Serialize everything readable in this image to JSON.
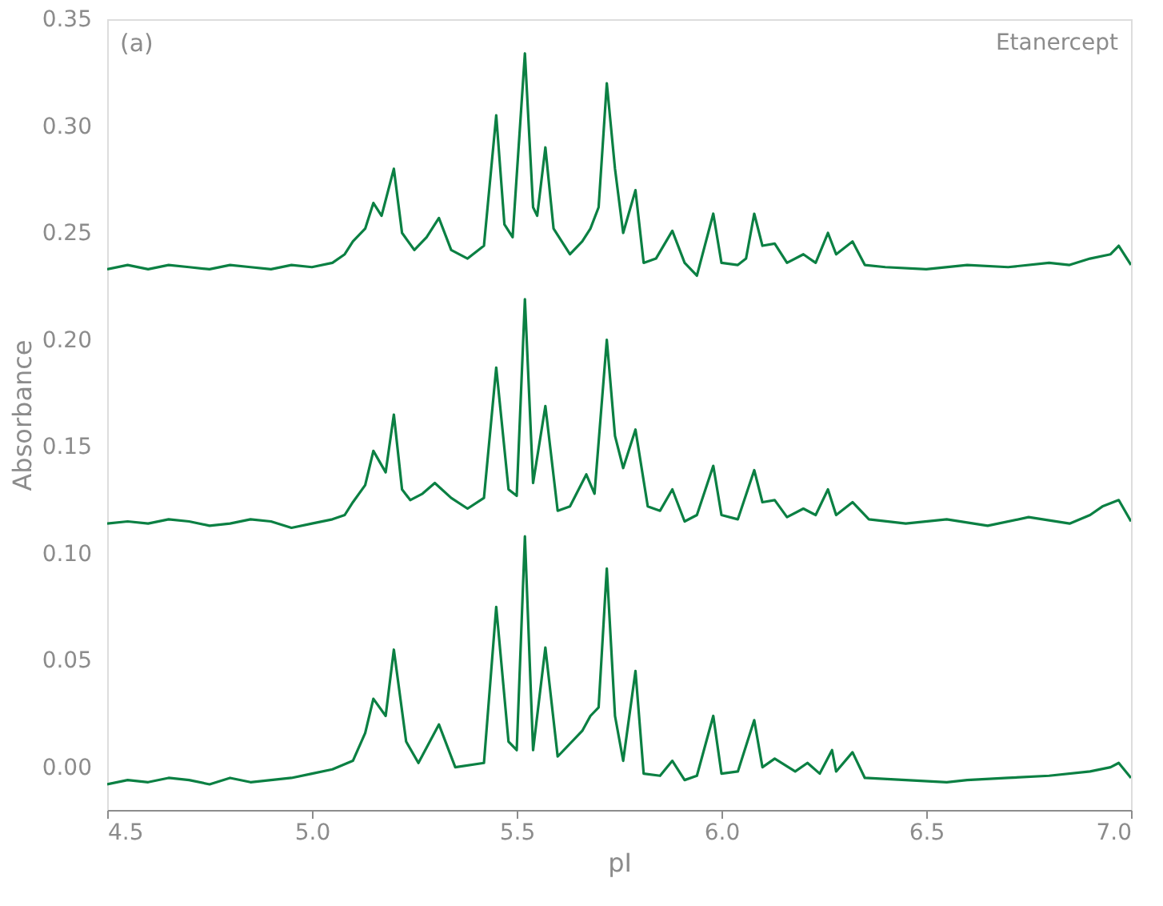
{
  "chart_data": {
    "type": "line",
    "xlabel": "pI",
    "ylabel": "Absorbance",
    "annotations": [
      "(a)",
      "Etanercept"
    ],
    "xlim": [
      4.5,
      7.0
    ],
    "ylim": [
      -0.02,
      0.35
    ],
    "xticks": [
      4.5,
      {
        "value": 5.0,
        "label": "5.0"
      },
      5.5,
      {
        "value": 6.0,
        "label": "6.0"
      },
      6.5,
      {
        "value": 7.0,
        "label": "7.0"
      }
    ],
    "yticks": [
      {
        "value": 0,
        "label": "0.00"
      },
      0.05,
      {
        "value": 0.1,
        "label": "0.10"
      },
      0.15,
      {
        "value": 0.2,
        "label": "0.20"
      },
      0.25,
      {
        "value": 0.3,
        "label": "0.30"
      },
      0.35
    ],
    "grid": false,
    "legend": false,
    "line_style": "solid",
    "marker": "none",
    "series": [
      {
        "color": "#0b8043",
        "x": [
          4.5,
          4.55,
          4.6,
          4.65,
          4.7,
          4.75,
          4.8,
          4.85,
          4.9,
          4.95,
          5.0,
          5.05,
          5.08,
          5.1,
          5.13,
          5.15,
          5.17,
          5.2,
          5.22,
          5.25,
          5.28,
          5.31,
          5.34,
          5.38,
          5.42,
          5.45,
          5.47,
          5.49,
          5.52,
          5.54,
          5.55,
          5.57,
          5.59,
          5.63,
          5.66,
          5.68,
          5.7,
          5.72,
          5.74,
          5.76,
          5.79,
          5.81,
          5.84,
          5.88,
          5.91,
          5.94,
          5.98,
          6.0,
          6.04,
          6.06,
          6.08,
          6.1,
          6.13,
          6.16,
          6.2,
          6.23,
          6.26,
          6.28,
          6.32,
          6.35,
          6.4,
          6.5,
          6.6,
          6.7,
          6.8,
          6.85,
          6.9,
          6.95,
          6.97,
          7.0
        ],
        "values": [
          0.233,
          0.235,
          0.233,
          0.235,
          0.234,
          0.233,
          0.235,
          0.234,
          0.233,
          0.235,
          0.234,
          0.236,
          0.24,
          0.246,
          0.252,
          0.264,
          0.258,
          0.28,
          0.25,
          0.242,
          0.248,
          0.257,
          0.242,
          0.238,
          0.244,
          0.305,
          0.254,
          0.248,
          0.334,
          0.262,
          0.258,
          0.29,
          0.252,
          0.24,
          0.246,
          0.252,
          0.262,
          0.32,
          0.28,
          0.25,
          0.27,
          0.236,
          0.238,
          0.251,
          0.236,
          0.23,
          0.259,
          0.236,
          0.235,
          0.238,
          0.259,
          0.244,
          0.245,
          0.236,
          0.24,
          0.236,
          0.25,
          0.24,
          0.246,
          0.235,
          0.234,
          0.233,
          0.235,
          0.234,
          0.236,
          0.235,
          0.238,
          0.24,
          0.244,
          0.235
        ]
      },
      {
        "color": "#0b8043",
        "x": [
          4.5,
          4.55,
          4.6,
          4.65,
          4.7,
          4.75,
          4.8,
          4.85,
          4.9,
          4.95,
          5.0,
          5.05,
          5.08,
          5.1,
          5.13,
          5.15,
          5.18,
          5.2,
          5.22,
          5.24,
          5.27,
          5.3,
          5.34,
          5.38,
          5.42,
          5.45,
          5.48,
          5.5,
          5.52,
          5.54,
          5.57,
          5.6,
          5.63,
          5.67,
          5.69,
          5.72,
          5.74,
          5.76,
          5.79,
          5.82,
          5.85,
          5.88,
          5.91,
          5.94,
          5.98,
          6.0,
          6.04,
          6.08,
          6.1,
          6.13,
          6.16,
          6.2,
          6.23,
          6.26,
          6.28,
          6.32,
          6.36,
          6.45,
          6.55,
          6.65,
          6.75,
          6.85,
          6.9,
          6.93,
          6.97,
          7.0
        ],
        "values": [
          0.114,
          0.115,
          0.114,
          0.116,
          0.115,
          0.113,
          0.114,
          0.116,
          0.115,
          0.112,
          0.114,
          0.116,
          0.118,
          0.124,
          0.132,
          0.148,
          0.138,
          0.165,
          0.13,
          0.125,
          0.128,
          0.133,
          0.126,
          0.121,
          0.126,
          0.187,
          0.13,
          0.127,
          0.219,
          0.133,
          0.169,
          0.12,
          0.122,
          0.137,
          0.128,
          0.2,
          0.155,
          0.14,
          0.158,
          0.122,
          0.12,
          0.13,
          0.115,
          0.118,
          0.141,
          0.118,
          0.116,
          0.139,
          0.124,
          0.125,
          0.117,
          0.121,
          0.118,
          0.13,
          0.118,
          0.124,
          0.116,
          0.114,
          0.116,
          0.113,
          0.117,
          0.114,
          0.118,
          0.122,
          0.125,
          0.115
        ]
      },
      {
        "color": "#0b8043",
        "x": [
          4.5,
          4.55,
          4.6,
          4.65,
          4.7,
          4.75,
          4.8,
          4.85,
          4.9,
          4.95,
          5.0,
          5.05,
          5.1,
          5.13,
          5.15,
          5.18,
          5.2,
          5.23,
          5.26,
          5.31,
          5.35,
          5.42,
          5.45,
          5.48,
          5.5,
          5.52,
          5.54,
          5.57,
          5.6,
          5.66,
          5.68,
          5.7,
          5.72,
          5.74,
          5.76,
          5.79,
          5.81,
          5.85,
          5.88,
          5.91,
          5.94,
          5.98,
          6.0,
          6.04,
          6.08,
          6.1,
          6.13,
          6.18,
          6.21,
          6.24,
          6.27,
          6.28,
          6.32,
          6.35,
          6.45,
          6.55,
          6.6,
          6.7,
          6.8,
          6.9,
          6.95,
          6.97,
          7.0
        ],
        "values": [
          -0.008,
          -0.006,
          -0.007,
          -0.005,
          -0.006,
          -0.008,
          -0.005,
          -0.007,
          -0.006,
          -0.005,
          -0.003,
          -0.001,
          0.003,
          0.016,
          0.032,
          0.024,
          0.055,
          0.012,
          0.002,
          0.02,
          0.0,
          0.002,
          0.075,
          0.012,
          0.008,
          0.108,
          0.008,
          0.056,
          0.005,
          0.017,
          0.024,
          0.028,
          0.093,
          0.024,
          0.003,
          0.045,
          -0.003,
          -0.004,
          0.003,
          -0.006,
          -0.004,
          0.024,
          -0.003,
          -0.002,
          0.022,
          0.0,
          0.004,
          -0.002,
          0.002,
          -0.003,
          0.008,
          -0.002,
          0.007,
          -0.005,
          -0.006,
          -0.007,
          -0.006,
          -0.005,
          -0.004,
          -0.002,
          0.0,
          0.002,
          -0.005
        ]
      }
    ]
  }
}
